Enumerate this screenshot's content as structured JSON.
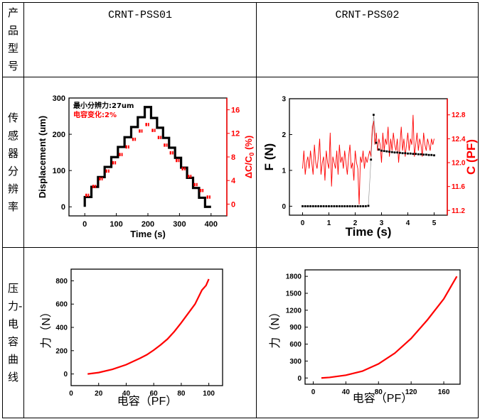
{
  "table": {
    "row_labels": [
      "产品型号",
      "传感器分辨率",
      "压力-电容曲线"
    ],
    "products": [
      "CRNT-PSS01",
      "CRNT-PSS02"
    ]
  },
  "colors": {
    "series_red": "#ff0000",
    "series_black": "#000000"
  },
  "chart_data": [
    {
      "type": "line",
      "xlabel": "Time (s)",
      "ylabel": "Displacement (um)",
      "y2label_main": "ΔC/C",
      "y2label_sub": "0",
      "y2label_unit": " (%)",
      "annotations": [
        {
          "text": "最小分辨力:27um",
          "color": "#000000"
        },
        {
          "text": "电容变化:2%",
          "color": "#ff0000"
        }
      ],
      "xlim": [
        -50,
        450
      ],
      "ylim": [
        -25,
        300
      ],
      "y2lim": [
        -2,
        18
      ],
      "xticks": [
        0,
        100,
        200,
        300,
        400
      ],
      "yticks": [
        0,
        100,
        200,
        300
      ],
      "y2ticks": [
        0,
        4,
        8,
        12,
        16
      ],
      "series": [
        {
          "axis": "left",
          "style": "step",
          "color": "#000000",
          "x": [
            0,
            21,
            42,
            63,
            84,
            105,
            126,
            147,
            168,
            190,
            210,
            229,
            248,
            267,
            286,
            305,
            324,
            343,
            362,
            381,
            400
          ],
          "y": [
            27,
            55,
            82,
            110,
            137,
            165,
            192,
            220,
            247,
            275,
            245,
            218,
            190,
            163,
            135,
            108,
            80,
            52,
            25,
            0,
            0
          ]
        },
        {
          "axis": "right",
          "style": "dashes",
          "color": "#ff0000",
          "x": [
            8,
            30,
            51,
            72,
            93,
            114,
            135,
            156,
            177,
            198,
            218,
            237,
            256,
            275,
            294,
            313,
            332,
            351,
            370,
            392
          ],
          "y": [
            1.5,
            3.0,
            4.3,
            5.6,
            7.0,
            8.4,
            9.7,
            11.0,
            12.4,
            13.5,
            12.5,
            11.3,
            10.0,
            8.7,
            7.4,
            6.0,
            4.7,
            3.3,
            2.3,
            1.2
          ]
        }
      ]
    },
    {
      "type": "line",
      "xlabel": "Time (s)",
      "ylabel": "F (N)",
      "y2label": "C (PF)",
      "xlim": [
        -0.5,
        5.5
      ],
      "ylim": [
        -0.25,
        3
      ],
      "y2lim": [
        11.12,
        13.07
      ],
      "xticks": [
        0,
        1,
        2,
        3,
        4,
        5
      ],
      "yticks": [
        0,
        1,
        2,
        3
      ],
      "y2ticks": [
        11.2,
        11.6,
        12.0,
        12.4,
        12.8
      ],
      "series": [
        {
          "axis": "right",
          "style": "line",
          "color": "#ff0000",
          "t_start": 0,
          "t_step": 0.05,
          "y": [
            11.9,
            12.2,
            11.8,
            12.0,
            12.1,
            11.9,
            12.2,
            12.0,
            11.8,
            12.3,
            12.0,
            11.9,
            12.1,
            12.4,
            11.8,
            12.0,
            12.1,
            11.7,
            12.2,
            12.0,
            11.9,
            12.5,
            11.6,
            12.1,
            12.0,
            11.9,
            12.2,
            11.8,
            12.3,
            12.0,
            12.1,
            11.9,
            12.2,
            12.0,
            11.8,
            12.1,
            12.3,
            11.9,
            12.0,
            11.7,
            12.2,
            12.0,
            11.9,
            11.3,
            12.1,
            12.0,
            12.2,
            11.9,
            12.1,
            12.0,
            12.1,
            12.2,
            12.1,
            12.6,
            12.7,
            12.3,
            12.5,
            12.2,
            12.4,
            12.3,
            12.0,
            12.5,
            12.2,
            12.4,
            12.3,
            12.6,
            12.1,
            12.4,
            12.2,
            12.5,
            12.3,
            12.2,
            12.4,
            12.0,
            12.3,
            12.6,
            12.2,
            12.4,
            12.1,
            12.3,
            12.5,
            12.2,
            12.4,
            12.3,
            12.8,
            12.1,
            12.3,
            12.5,
            12.2,
            12.4,
            12.3,
            12.1,
            12.5,
            12.3,
            12.2,
            12.4,
            12.3,
            12.2,
            12.4,
            12.3,
            12.4
          ]
        },
        {
          "axis": "left",
          "style": "markers",
          "color": "#000000",
          "x": [
            0,
            0.1,
            0.2,
            0.3,
            0.4,
            0.5,
            0.6,
            0.7,
            0.8,
            0.9,
            1.0,
            1.1,
            1.2,
            1.3,
            1.4,
            1.5,
            1.6,
            1.7,
            1.8,
            1.9,
            2.0,
            2.1,
            2.2,
            2.3,
            2.4,
            2.5,
            2.6,
            2.7,
            2.8,
            2.9,
            3.0,
            3.1,
            3.2,
            3.3,
            3.4,
            3.5,
            3.6,
            3.7,
            3.8,
            3.9,
            4.0,
            4.1,
            4.2,
            4.3,
            4.4,
            4.5,
            4.6,
            4.7,
            4.8,
            4.9,
            5.0
          ],
          "y": [
            0,
            0,
            0,
            0,
            0,
            0,
            0,
            0,
            0,
            0,
            0,
            0,
            0,
            0,
            0,
            0,
            0,
            0,
            0,
            0,
            0,
            0,
            0,
            0,
            0,
            0.01,
            1.3,
            2.55,
            1.77,
            1.58,
            1.55,
            1.54,
            1.53,
            1.52,
            1.51,
            1.5,
            1.5,
            1.49,
            1.48,
            1.48,
            1.47,
            1.47,
            1.46,
            1.46,
            1.45,
            1.45,
            1.44,
            1.44,
            1.43,
            1.43,
            1.42
          ]
        }
      ]
    },
    {
      "type": "line",
      "xlabel": "电容（PF）",
      "ylabel": "力（N）",
      "xlim": [
        0,
        110
      ],
      "ylim": [
        -100,
        900
      ],
      "xticks": [
        0,
        20,
        40,
        60,
        80,
        100
      ],
      "yticks": [
        0,
        200,
        400,
        600,
        800
      ],
      "series": [
        {
          "style": "thick",
          "color": "#ff0000",
          "x": [
            12,
            20,
            30,
            40,
            50,
            55,
            60,
            65,
            70,
            75,
            80,
            85,
            90,
            95,
            98,
            100
          ],
          "y": [
            0,
            12,
            40,
            80,
            135,
            165,
            205,
            250,
            300,
            365,
            440,
            520,
            600,
            720,
            760,
            815
          ]
        }
      ]
    },
    {
      "type": "line",
      "xlabel": "电容（PF）",
      "ylabel": "力（N）",
      "xlim": [
        -10,
        180
      ],
      "ylim": [
        -110,
        1915
      ],
      "xticks": [
        0,
        40,
        80,
        120,
        160
      ],
      "yticks": [
        0,
        300,
        600,
        900,
        1200,
        1500,
        1800
      ],
      "series": [
        {
          "style": "thick",
          "color": "#ff0000",
          "x": [
            10,
            20,
            40,
            60,
            80,
            100,
            120,
            140,
            160,
            176
          ],
          "y": [
            0,
            10,
            50,
            120,
            250,
            440,
            700,
            1030,
            1400,
            1800
          ]
        }
      ]
    }
  ]
}
